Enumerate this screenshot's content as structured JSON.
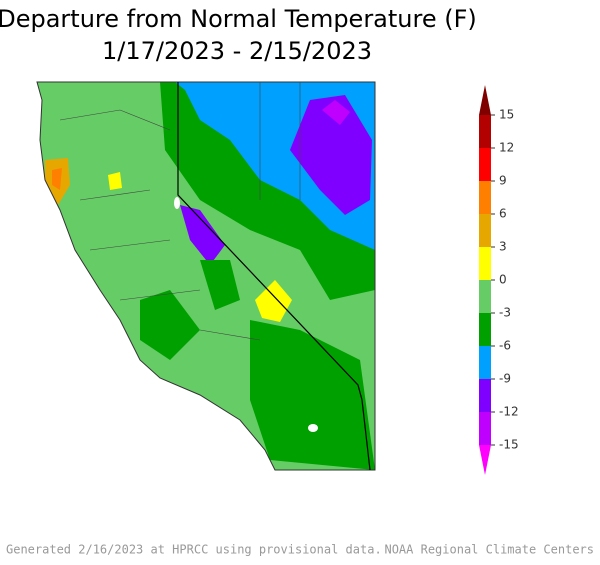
{
  "title": [
    "Departure from Normal Temperature (F)",
    "1/17/2023 - 2/15/2023"
  ],
  "colorbar": {
    "ticks": [
      15,
      12,
      9,
      6,
      3,
      0,
      -3,
      -6,
      -9,
      -12,
      -15
    ],
    "colors": [
      "#800000",
      "#b30000",
      "#ff0000",
      "#ff8000",
      "#e6a800",
      "#ffff00",
      "#66cc66",
      "#00a000",
      "#00a0ff",
      "#8000ff",
      "#c000ff",
      "#ff00ff"
    ]
  },
  "footer": {
    "left": "Generated 2/16/2023 at HPRCC using provisional data.",
    "right": "NOAA Regional Climate Centers"
  }
}
